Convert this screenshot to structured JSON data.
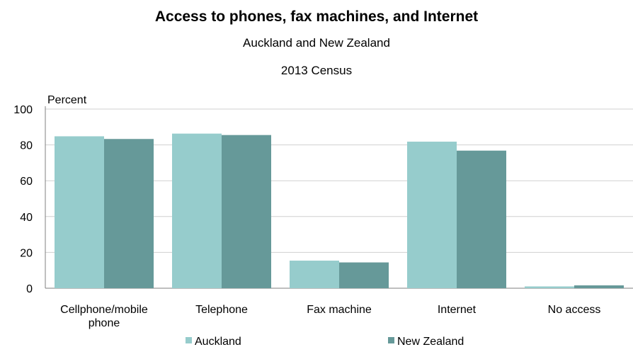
{
  "chart_data": {
    "type": "bar",
    "title": "Access to phones, fax machines, and Internet",
    "subtitle": "Auckland and New Zealand",
    "subtitle2": "2013 Census",
    "ylabel": "Percent",
    "xlabel": "",
    "ylim": [
      0,
      100
    ],
    "yticks": [
      0,
      20,
      40,
      60,
      80,
      100
    ],
    "grid": true,
    "legend_position": "bottom",
    "categories": [
      "Cellphone/mobile phone",
      "Telephone",
      "Fax machine",
      "Internet",
      "No access"
    ],
    "category_lines": [
      [
        "Cellphone/mobile",
        "phone"
      ],
      [
        "Telephone"
      ],
      [
        "Fax machine"
      ],
      [
        "Internet"
      ],
      [
        "No access"
      ]
    ],
    "series": [
      {
        "name": "Auckland",
        "color": "#96cccc",
        "values": [
          84.8,
          86.3,
          15.4,
          81.8,
          1.0
        ]
      },
      {
        "name": "New Zealand",
        "color": "#669999",
        "values": [
          83.3,
          85.5,
          14.4,
          76.8,
          1.6
        ]
      }
    ]
  }
}
